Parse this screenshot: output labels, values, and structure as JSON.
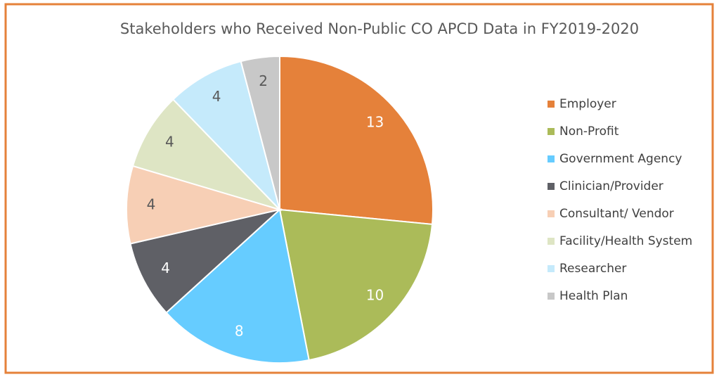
{
  "chart_data": {
    "type": "pie",
    "title": "Stakeholders who Received Non-Public CO APCD Data in FY2019-2020",
    "categories": [
      "Employer",
      "Non-Profit",
      "Government Agency",
      "Clinician/Provider",
      "Consultant/ Vendor",
      "Facility/Health System",
      "Researcher",
      "Health Plan"
    ],
    "values": [
      13,
      10,
      8,
      4,
      4,
      4,
      4,
      2
    ],
    "colors": [
      "#E5813A",
      "#ABBB59",
      "#66CCFF",
      "#5F6066",
      "#F7CFB5",
      "#DEE5C4",
      "#C5EAFB",
      "#C8C8C8"
    ],
    "legend": "right"
  }
}
